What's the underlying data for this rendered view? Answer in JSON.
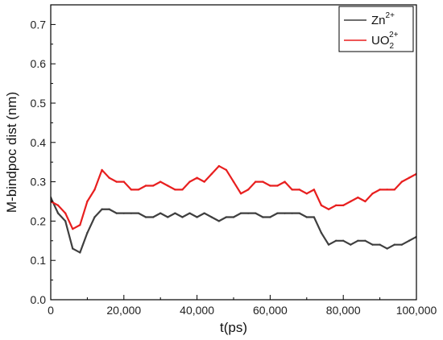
{
  "chart_data": {
    "type": "line",
    "xlabel": "t(ps)",
    "ylabel": "M-bindpoc dist (nm)",
    "xlim": [
      0,
      100000
    ],
    "ylim": [
      0,
      0.75
    ],
    "x_ticks": [
      0,
      20000,
      40000,
      60000,
      80000,
      100000
    ],
    "x_tick_labels": [
      "0",
      "20,000",
      "40,000",
      "60,000",
      "80,000",
      "100,000"
    ],
    "y_ticks": [
      0.0,
      0.1,
      0.2,
      0.3,
      0.4,
      0.5,
      0.6,
      0.7
    ],
    "y_tick_labels": [
      "0.0",
      "0.1",
      "0.2",
      "0.3",
      "0.4",
      "0.5",
      "0.6",
      "0.7"
    ],
    "grid": false,
    "legend_position": "top-right",
    "series": [
      {
        "name": "Zn2+",
        "legend_base": "Zn",
        "legend_sup": "2+",
        "legend_sub": "",
        "color": "#3f3f3f",
        "x": [
          0,
          2000,
          4000,
          6000,
          8000,
          10000,
          12000,
          14000,
          16000,
          18000,
          20000,
          22000,
          24000,
          26000,
          28000,
          30000,
          32000,
          34000,
          36000,
          38000,
          40000,
          42000,
          44000,
          46000,
          48000,
          50000,
          52000,
          54000,
          56000,
          58000,
          60000,
          62000,
          64000,
          66000,
          68000,
          70000,
          72000,
          74000,
          76000,
          78000,
          80000,
          82000,
          84000,
          86000,
          88000,
          90000,
          92000,
          94000,
          96000,
          98000,
          100000
        ],
        "values": [
          0.26,
          0.22,
          0.2,
          0.13,
          0.12,
          0.17,
          0.21,
          0.23,
          0.23,
          0.22,
          0.22,
          0.22,
          0.22,
          0.21,
          0.21,
          0.22,
          0.21,
          0.22,
          0.21,
          0.22,
          0.21,
          0.22,
          0.21,
          0.2,
          0.21,
          0.21,
          0.22,
          0.22,
          0.22,
          0.21,
          0.21,
          0.22,
          0.22,
          0.22,
          0.22,
          0.21,
          0.21,
          0.17,
          0.14,
          0.15,
          0.15,
          0.14,
          0.15,
          0.15,
          0.14,
          0.14,
          0.13,
          0.14,
          0.14,
          0.15,
          0.16
        ]
      },
      {
        "name": "UO22+",
        "legend_base": "UO",
        "legend_sup": "2+",
        "legend_sub": "2",
        "color": "#e81f1f",
        "x": [
          0,
          2000,
          4000,
          6000,
          8000,
          10000,
          12000,
          14000,
          16000,
          18000,
          20000,
          22000,
          24000,
          26000,
          28000,
          30000,
          32000,
          34000,
          36000,
          38000,
          40000,
          42000,
          44000,
          46000,
          48000,
          50000,
          52000,
          54000,
          56000,
          58000,
          60000,
          62000,
          64000,
          66000,
          68000,
          70000,
          72000,
          74000,
          76000,
          78000,
          80000,
          82000,
          84000,
          86000,
          88000,
          90000,
          92000,
          94000,
          96000,
          98000,
          100000
        ],
        "values": [
          0.25,
          0.24,
          0.22,
          0.18,
          0.19,
          0.25,
          0.28,
          0.33,
          0.31,
          0.3,
          0.3,
          0.28,
          0.28,
          0.29,
          0.29,
          0.3,
          0.29,
          0.28,
          0.28,
          0.3,
          0.31,
          0.3,
          0.32,
          0.34,
          0.33,
          0.3,
          0.27,
          0.28,
          0.3,
          0.3,
          0.29,
          0.29,
          0.3,
          0.28,
          0.28,
          0.27,
          0.28,
          0.24,
          0.23,
          0.24,
          0.24,
          0.25,
          0.26,
          0.25,
          0.27,
          0.28,
          0.28,
          0.28,
          0.3,
          0.31,
          0.32
        ]
      }
    ]
  }
}
